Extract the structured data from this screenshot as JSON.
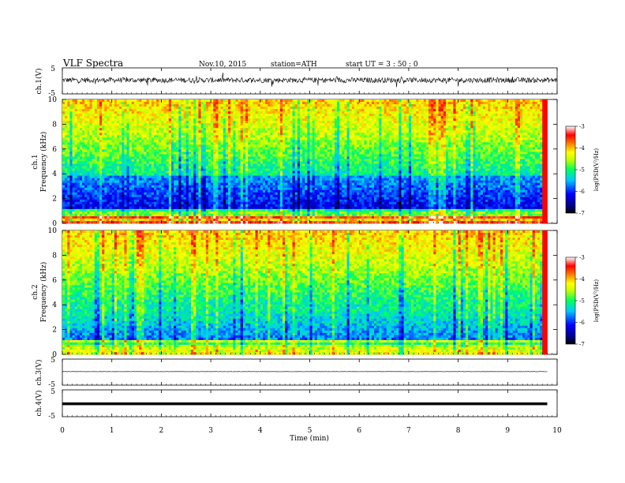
{
  "header": {
    "title": "VLF Spectra",
    "date": "Nov.10, 2015",
    "station": "station=ATH",
    "start": "start  UT =  3 : 50 : 0"
  },
  "colors": {
    "waveform": "#000000",
    "spectrogram_low": "#000080",
    "spectrogram_high": "#d40000"
  },
  "chart_data": [
    {
      "type": "line",
      "panel": "ch1-waveform",
      "ylabel": "ch.1(V)",
      "ylim": [
        -5,
        5
      ],
      "yticks": [
        "5",
        "-5"
      ],
      "xlim": [
        0,
        10
      ],
      "description_values": "noisy waveform around 0 V with amplitude about ±1 V and spikes to about ±2 V",
      "mean": 0.3,
      "amplitude": 1.0
    },
    {
      "type": "heatmap",
      "panel": "ch1-spectrogram",
      "ylabel_top": "ch.1",
      "ylabel": "Frequency  (kHz)",
      "ylim": [
        0,
        10
      ],
      "yticks": [
        "0",
        "2",
        "4",
        "6",
        "8",
        "10"
      ],
      "xlim": [
        0,
        9.8
      ],
      "colorbar": {
        "label": "log(PSD(V²/Hz)",
        "range": [
          -7,
          -3
        ],
        "ticks": [
          "-3",
          "-4",
          "-5",
          "-6",
          "-7"
        ]
      }
    },
    {
      "type": "heatmap",
      "panel": "ch2-spectrogram",
      "ylabel_top": "ch.2",
      "ylabel": "Frequency  (kHz)",
      "ylim": [
        0,
        10
      ],
      "yticks": [
        "0",
        "2",
        "4",
        "6",
        "8",
        "10"
      ],
      "xlim": [
        0,
        9.8
      ],
      "colorbar": {
        "label": "log(PSD(V²/Hz)",
        "range": [
          -7,
          -3
        ],
        "ticks": [
          "-3",
          "-4",
          "-5",
          "-6",
          "-7"
        ]
      }
    },
    {
      "type": "line",
      "panel": "ch3-waveform",
      "ylabel": "ch.3(V)",
      "ylim": [
        -5,
        5
      ],
      "yticks": [
        "5",
        "-5"
      ],
      "xlim": [
        0,
        9.8
      ],
      "mean": 0.2,
      "amplitude": 0.05
    },
    {
      "type": "line",
      "panel": "ch4-waveform",
      "ylabel": "ch.4(V)",
      "ylim": [
        -5,
        5
      ],
      "yticks": [
        "5",
        "-5"
      ],
      "xlim": [
        0,
        9.8
      ],
      "mean": 0.1,
      "amplitude": 0.3
    }
  ],
  "xaxis": {
    "label": "Time  (min)",
    "range": [
      0,
      10
    ],
    "ticks": [
      "0",
      "1",
      "2",
      "3",
      "4",
      "5",
      "6",
      "7",
      "8",
      "9",
      "10"
    ]
  }
}
